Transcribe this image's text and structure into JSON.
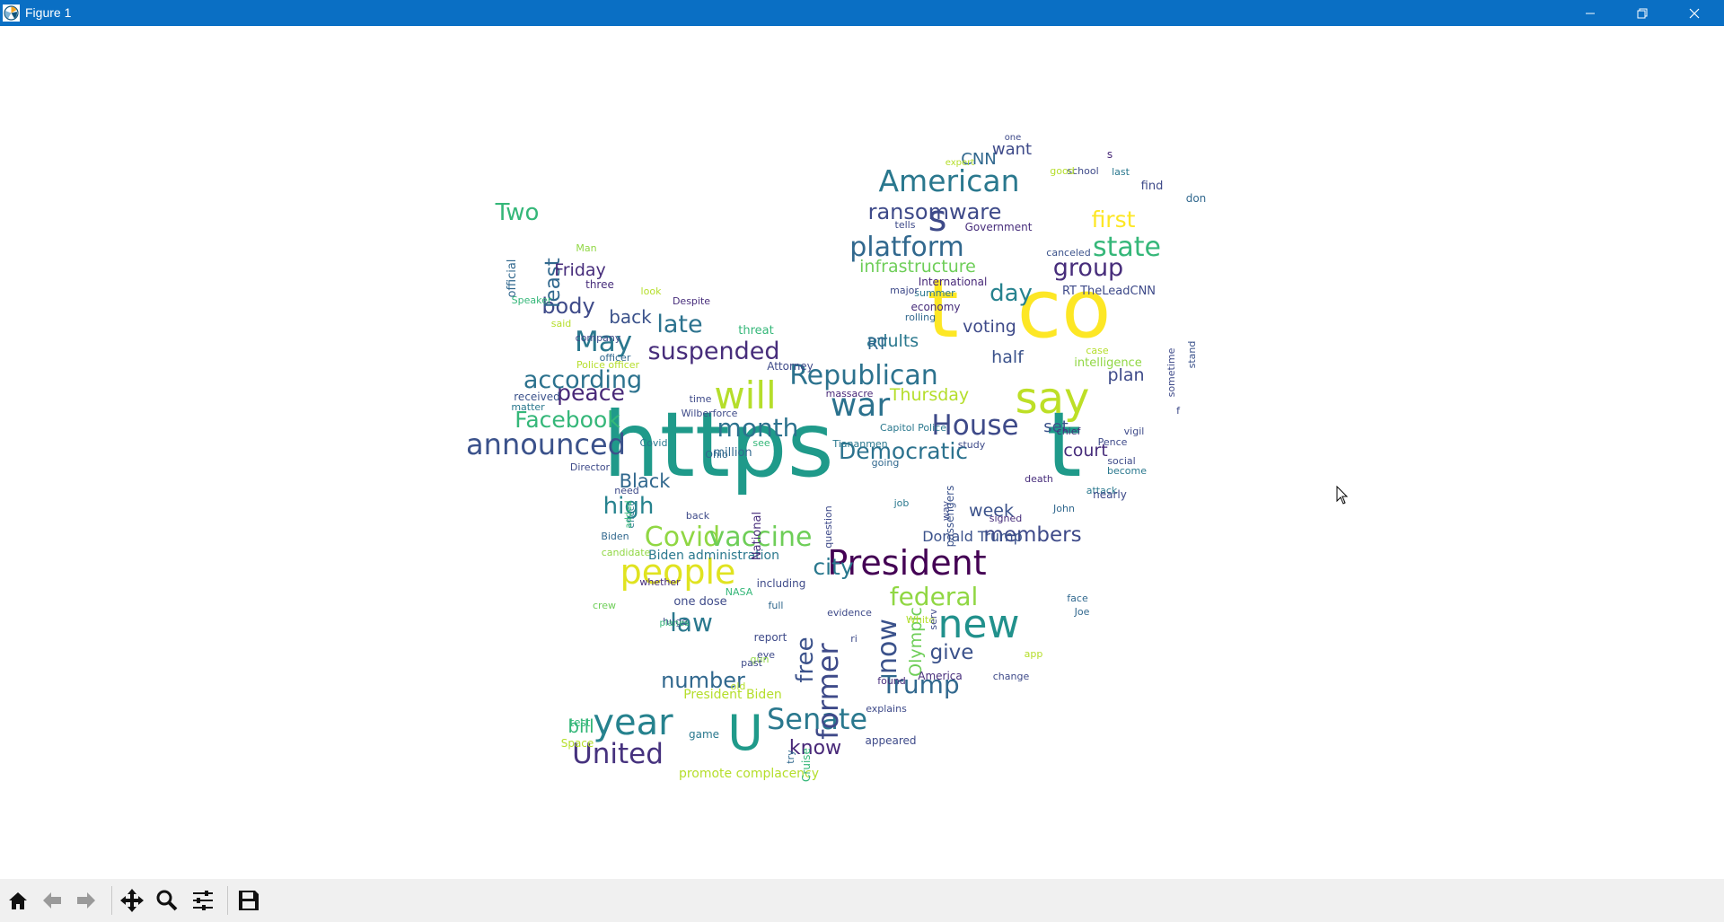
{
  "window": {
    "title": "Figure 1",
    "titlebar_color": "#0a6fc4"
  },
  "window_controls": [
    "minimize-icon",
    "restore-icon",
    "close-icon"
  ],
  "toolbar": {
    "buttons": [
      "home-icon",
      "back-arrow-icon",
      "forward-arrow-icon",
      "pan-icon",
      "zoom-icon",
      "configure-subplots-icon",
      "save-icon"
    ]
  },
  "wordcloud": {
    "colormap": "viridis",
    "words": [
      {
        "t": "https",
        "c": "#1f9a8a"
      },
      {
        "t": "t",
        "c": "#1f9a8a"
      },
      {
        "t": "t",
        "c": "#fde725"
      },
      {
        "t": "co",
        "c": "#fde725"
      },
      {
        "t": "say",
        "c": "#bddf26"
      },
      {
        "t": "new",
        "c": "#21918c"
      },
      {
        "t": "will",
        "c": "#b5de2b"
      },
      {
        "t": "U",
        "c": "#1f9a8a"
      },
      {
        "t": "year",
        "c": "#26828e"
      },
      {
        "t": "war",
        "c": "#2c728e"
      },
      {
        "t": "people",
        "c": "#e0e320"
      },
      {
        "t": "American",
        "c": "#2a788e"
      },
      {
        "t": "President",
        "c": "#440154"
      },
      {
        "t": "announced",
        "c": "#3b528b"
      },
      {
        "t": "May",
        "c": "#2a788e"
      },
      {
        "t": "Republican",
        "c": "#2c728e"
      },
      {
        "t": "platform",
        "c": "#31688e"
      },
      {
        "t": "state",
        "c": "#35b779"
      },
      {
        "t": "Covid",
        "c": "#90d743"
      },
      {
        "t": "vaccine",
        "c": "#6ece58"
      },
      {
        "t": "Senate",
        "c": "#2a788e"
      },
      {
        "t": "United",
        "c": "#46327e"
      },
      {
        "t": "House",
        "c": "#3e4a89"
      },
      {
        "t": "suspended",
        "c": "#472d7b"
      },
      {
        "t": "according",
        "c": "#2c728e"
      },
      {
        "t": "federal",
        "c": "#90d743"
      },
      {
        "t": "former",
        "c": "#3e4a89"
      },
      {
        "t": "now",
        "c": "#3b528b"
      },
      {
        "t": "law",
        "c": "#2a788e"
      },
      {
        "t": "Trump",
        "c": "#31688e"
      },
      {
        "t": "month",
        "c": "#2c728e"
      },
      {
        "t": "Facebook",
        "c": "#35b779"
      },
      {
        "t": "group",
        "c": "#472d7b"
      },
      {
        "t": "first",
        "c": "#fde725"
      },
      {
        "t": "ransomware",
        "c": "#3e4a89"
      },
      {
        "t": "late",
        "c": "#2c728e"
      },
      {
        "t": "peace",
        "c": "#482878"
      },
      {
        "t": "day",
        "c": "#26828e"
      },
      {
        "t": "Democratic",
        "c": "#2c728e"
      },
      {
        "t": "city",
        "c": "#2a788e"
      },
      {
        "t": "members",
        "c": "#3e4a89"
      },
      {
        "t": "high",
        "c": "#26828e"
      },
      {
        "t": "free",
        "c": "#3b528b"
      },
      {
        "t": "number",
        "c": "#31688e"
      },
      {
        "t": "give",
        "c": "#3b528b"
      },
      {
        "t": "know",
        "c": "#482878"
      },
      {
        "t": "body",
        "c": "#3e4a89"
      },
      {
        "t": "Two",
        "c": "#35b779"
      },
      {
        "t": "least",
        "c": "#31688e"
      },
      {
        "t": "Friday",
        "c": "#472d7b"
      },
      {
        "t": "back",
        "c": "#3b528b"
      },
      {
        "t": "infrastructure",
        "c": "#6ece58"
      },
      {
        "t": "Thursday",
        "c": "#b5de2b"
      },
      {
        "t": "voting",
        "c": "#3e4a89"
      },
      {
        "t": "adults",
        "c": "#2a788e"
      },
      {
        "t": "week",
        "c": "#3b528b"
      },
      {
        "t": "Black",
        "c": "#31688e"
      },
      {
        "t": "bill",
        "c": "#35b779"
      },
      {
        "t": "court",
        "c": "#472d7b"
      },
      {
        "t": "plan",
        "c": "#3e4a89"
      },
      {
        "t": "half",
        "c": "#3b528b"
      },
      {
        "t": "set",
        "c": "#3b528b"
      },
      {
        "t": "RT",
        "c": "#31688e"
      },
      {
        "t": "want",
        "c": "#3e4a89"
      },
      {
        "t": "CNN",
        "c": "#31688e"
      },
      {
        "t": "Olympic",
        "c": "#6ece58"
      },
      {
        "t": "Donald Trump",
        "c": "#3b528b"
      },
      {
        "t": "Biden administration",
        "c": "#2a788e"
      },
      {
        "t": "promote complacency",
        "c": "#b5de2b"
      },
      {
        "t": "President Biden",
        "c": "#b5de2b"
      },
      {
        "t": "RT TheLeadCNN",
        "c": "#3e4a89"
      },
      {
        "t": "intelligence",
        "c": "#90d743"
      },
      {
        "t": "Government",
        "c": "#472d7b"
      },
      {
        "t": "International",
        "c": "#482878"
      },
      {
        "t": "official",
        "c": "#31688e"
      },
      {
        "t": "Police officer",
        "c": "#b5de2b"
      },
      {
        "t": "Capitol Police",
        "c": "#2a788e"
      },
      {
        "t": "Tiananmen",
        "c": "#2a788e"
      },
      {
        "t": "Wilberforce",
        "c": "#3e4a89"
      },
      {
        "t": "one dose",
        "c": "#3e4a89"
      },
      {
        "t": "threat",
        "c": "#35b779"
      },
      {
        "t": "Attorney",
        "c": "#3e4a89"
      },
      {
        "t": "massacre",
        "c": "#482878"
      },
      {
        "t": "million",
        "c": "#31688e"
      },
      {
        "t": "economy",
        "c": "#472d7b"
      },
      {
        "t": "rolling",
        "c": "#31688e"
      },
      {
        "t": "summer",
        "c": "#2a788e"
      },
      {
        "t": "major",
        "c": "#3e4a89"
      },
      {
        "t": "tells",
        "c": "#3e4a89"
      },
      {
        "t": "canceled",
        "c": "#3b528b"
      },
      {
        "t": "school",
        "c": "#3e4a89"
      },
      {
        "t": "good",
        "c": "#b5de2b"
      },
      {
        "t": "last",
        "c": "#2a788e"
      },
      {
        "t": "find",
        "c": "#3e4a89"
      },
      {
        "t": "don",
        "c": "#31688e"
      },
      {
        "t": "expert",
        "c": "#b5de2b"
      },
      {
        "t": "one",
        "c": "#3e4a89"
      },
      {
        "t": "Man",
        "c": "#90d743"
      },
      {
        "t": "three",
        "c": "#472d7b"
      },
      {
        "t": "look",
        "c": "#b5de2b"
      },
      {
        "t": "Despite",
        "c": "#472d7b"
      },
      {
        "t": "Speaker",
        "c": "#35b779"
      },
      {
        "t": "said",
        "c": "#b5de2b"
      },
      {
        "t": "company",
        "c": "#3e4a89"
      },
      {
        "t": "officer",
        "c": "#31688e"
      },
      {
        "t": "time",
        "c": "#3e4a89"
      },
      {
        "t": "received",
        "c": "#3b528b"
      },
      {
        "t": "matter",
        "c": "#2a788e"
      },
      {
        "t": "see",
        "c": "#35b779"
      },
      {
        "t": "Covid",
        "c": "#2a788e"
      },
      {
        "t": "Ohio",
        "c": "#31688e"
      },
      {
        "t": "Director",
        "c": "#3e4a89"
      },
      {
        "t": "need",
        "c": "#3e4a89"
      },
      {
        "t": "effect",
        "c": "#2a788e"
      },
      {
        "t": "added",
        "c": "#35b779"
      },
      {
        "t": "back",
        "c": "#3e4a89"
      },
      {
        "t": "Biden",
        "c": "#31688e"
      },
      {
        "t": "candidate",
        "c": "#90d743"
      },
      {
        "t": "whether",
        "c": "#472d7b"
      },
      {
        "t": "including",
        "c": "#3e4a89"
      },
      {
        "t": "crew",
        "c": "#6ece58"
      },
      {
        "t": "NASA",
        "c": "#35b779"
      },
      {
        "t": "huge",
        "c": "#3e4a89"
      },
      {
        "t": "full",
        "c": "#31688e"
      },
      {
        "t": "planes",
        "c": "#35b779"
      },
      {
        "t": "report",
        "c": "#3e4a89"
      },
      {
        "t": "eye",
        "c": "#3e4a89"
      },
      {
        "t": "gun",
        "c": "#90d743"
      },
      {
        "t": "past",
        "c": "#3e4a89"
      },
      {
        "t": "old",
        "c": "#b5de2b"
      },
      {
        "t": "test",
        "c": "#35b779"
      },
      {
        "t": "Space",
        "c": "#b5de2b"
      },
      {
        "t": "game",
        "c": "#2a788e"
      },
      {
        "t": "try",
        "c": "#31688e"
      },
      {
        "t": "Cruise",
        "c": "#35b779"
      },
      {
        "t": "appeared",
        "c": "#3e4a89"
      },
      {
        "t": "America",
        "c": "#472d7b"
      },
      {
        "t": "explains",
        "c": "#3e4a89"
      },
      {
        "t": "found",
        "c": "#472d7b"
      },
      {
        "t": "ri",
        "c": "#3e4a89"
      },
      {
        "t": "evidence",
        "c": "#3e4a89"
      },
      {
        "t": "White",
        "c": "#b5de2b"
      },
      {
        "t": "serv",
        "c": "#3e4a89"
      },
      {
        "t": "face",
        "c": "#31688e"
      },
      {
        "t": "Joe",
        "c": "#31688e"
      },
      {
        "t": "app",
        "c": "#b5de2b"
      },
      {
        "t": "change",
        "c": "#3e4a89"
      },
      {
        "t": "signed",
        "c": "#472d7b"
      },
      {
        "t": "death",
        "c": "#472d7b"
      },
      {
        "t": "attack",
        "c": "#2a788e"
      },
      {
        "t": "John",
        "c": "#31688e"
      },
      {
        "t": "become",
        "c": "#2a788e"
      },
      {
        "t": "nearly",
        "c": "#3e4a89"
      },
      {
        "t": "Pence",
        "c": "#3e4a89"
      },
      {
        "t": "vigil",
        "c": "#3e4a89"
      },
      {
        "t": "social",
        "c": "#3e4a89"
      },
      {
        "t": "chief",
        "c": "#472d7b"
      },
      {
        "t": "study",
        "c": "#3e4a89"
      },
      {
        "t": "going",
        "c": "#31688e"
      },
      {
        "t": "job",
        "c": "#2a788e"
      },
      {
        "t": "way",
        "c": "#3e4a89"
      },
      {
        "t": "question",
        "c": "#3e4a89"
      },
      {
        "t": "passengers",
        "c": "#3b528b"
      },
      {
        "t": "National",
        "c": "#472d7b"
      },
      {
        "t": "case",
        "c": "#b5de2b"
      },
      {
        "t": "sometime",
        "c": "#3e4a89"
      },
      {
        "t": "stand",
        "c": "#3b528b"
      },
      {
        "t": "f",
        "c": "#3e4a89"
      },
      {
        "t": "s",
        "c": "#3e4a89"
      },
      {
        "t": "s",
        "c": "#482878"
      }
    ]
  }
}
